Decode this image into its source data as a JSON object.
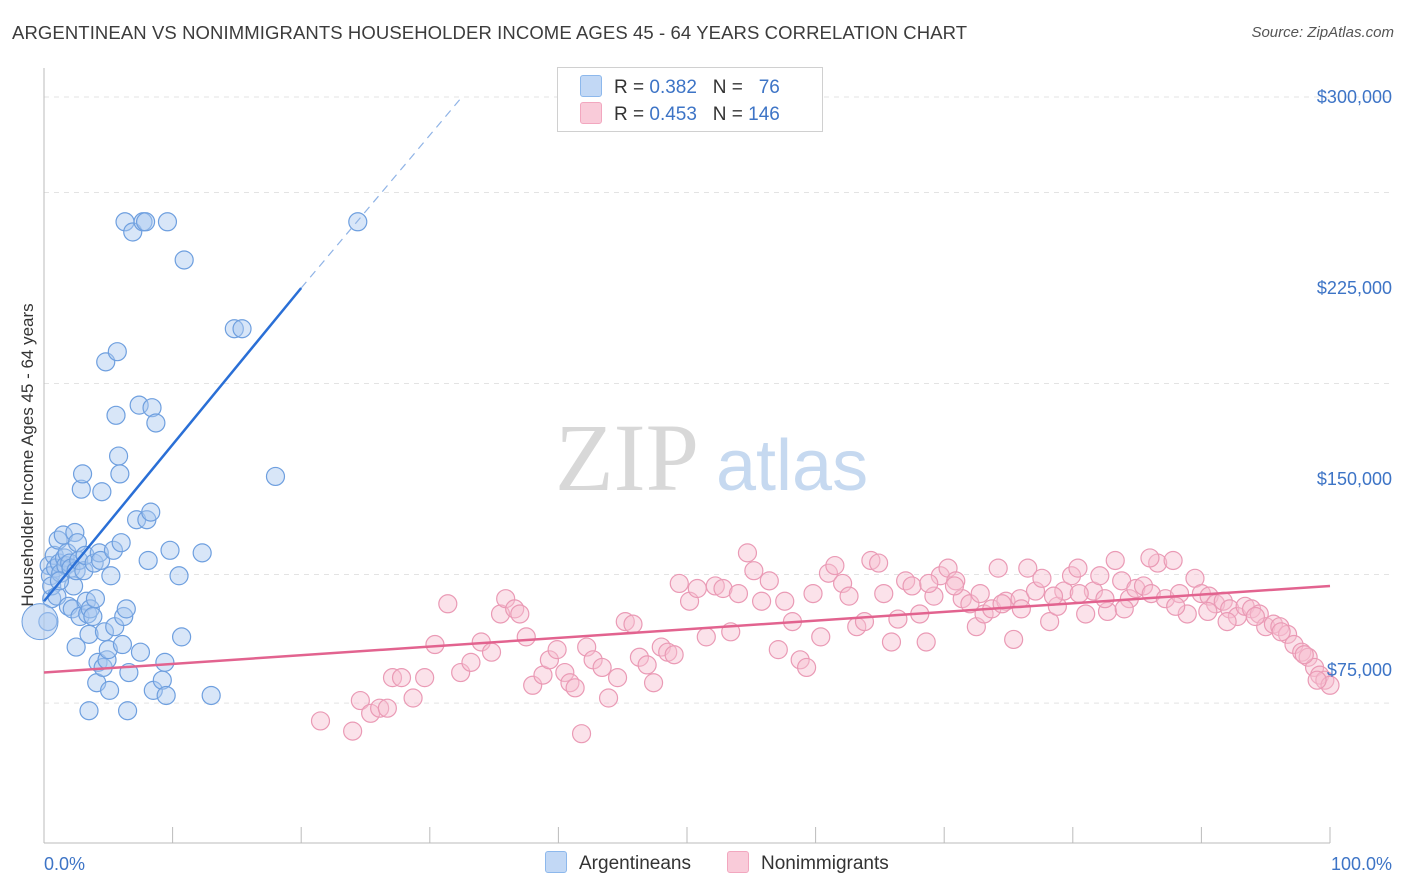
{
  "title": "ARGENTINEAN VS NONIMMIGRANTS HOUSEHOLDER INCOME AGES 45 - 64 YEARS CORRELATION CHART",
  "source": "Source: ZipAtlas.com",
  "watermark": {
    "zip": "ZIP",
    "atlas": "atlas"
  },
  "colors": {
    "blue": "#8db8ec",
    "blue_line": "#2a6fd6",
    "pink": "#f2a7bf",
    "pink_line": "#e2638f",
    "accent_text": "#3d74c6"
  },
  "legend": {
    "r_label": "R =",
    "n_label": "N =",
    "rows": [
      {
        "r": "0.382",
        "n": "76"
      },
      {
        "r": "0.453",
        "n": "146"
      }
    ]
  },
  "chart_data": {
    "type": "scatter",
    "title": "ARGENTINEAN VS NONIMMIGRANTS HOUSEHOLDER INCOME AGES 45 - 64 YEARS CORRELATION CHART",
    "xlabel": "",
    "ylabel": "Householder Income Ages 45 - 64 years",
    "xlim": [
      0,
      100
    ],
    "ylim": [
      0,
      310000
    ],
    "x_tick_labels": [
      "0.0%",
      "100.0%"
    ],
    "y_ticks": [
      75000,
      150000,
      225000,
      300000
    ],
    "y_tick_labels": [
      "$75,000",
      "$150,000",
      "$225,000",
      "$300,000"
    ],
    "grid": "horizontal dashed",
    "legend_placement": "top-center and bottom-center",
    "series": [
      {
        "name": "Argentineans",
        "color": "#8db8ec",
        "trend": {
          "x": [
            0,
            20
          ],
          "y": [
            102000,
            225000
          ],
          "dashed_to": {
            "x": 32.5,
            "y": 300000
          }
        },
        "points": [
          [
            0.3,
            94000
          ],
          [
            0.4,
            116000
          ],
          [
            0.5,
            112000
          ],
          [
            0.6,
            103000
          ],
          [
            0.6,
            108000
          ],
          [
            0.8,
            120000
          ],
          [
            0.9,
            115000
          ],
          [
            1.0,
            104000
          ],
          [
            1.1,
            126000
          ],
          [
            1.2,
            117000
          ],
          [
            1.3,
            113000
          ],
          [
            1.5,
            128000
          ],
          [
            1.6,
            119000
          ],
          [
            1.7,
            116000
          ],
          [
            1.8,
            121000
          ],
          [
            1.9,
            100000
          ],
          [
            2.0,
            117000
          ],
          [
            2.1,
            115000
          ],
          [
            2.2,
            99000
          ],
          [
            2.3,
            108000
          ],
          [
            2.4,
            129000
          ],
          [
            2.5,
            114000
          ],
          [
            2.6,
            125000
          ],
          [
            2.7,
            118000
          ],
          [
            2.8,
            96000
          ],
          [
            2.9,
            146000
          ],
          [
            3.0,
            152000
          ],
          [
            3.1,
            114000
          ],
          [
            3.2,
            120000
          ],
          [
            3.3,
            102000
          ],
          [
            3.4,
            97000
          ],
          [
            3.5,
            89000
          ],
          [
            3.6,
            99000
          ],
          [
            3.8,
            96000
          ],
          [
            3.9,
            117000
          ],
          [
            4.0,
            103000
          ],
          [
            4.1,
            70000
          ],
          [
            4.2,
            78000
          ],
          [
            4.3,
            121000
          ],
          [
            4.4,
            118000
          ],
          [
            4.5,
            145000
          ],
          [
            4.6,
            76000
          ],
          [
            4.7,
            90000
          ],
          [
            4.8,
            196000
          ],
          [
            4.9,
            79000
          ],
          [
            5.0,
            83000
          ],
          [
            5.1,
            67000
          ],
          [
            5.2,
            112000
          ],
          [
            5.4,
            122000
          ],
          [
            5.5,
            92000
          ],
          [
            5.6,
            175000
          ],
          [
            5.7,
            200000
          ],
          [
            5.8,
            159000
          ],
          [
            5.9,
            152000
          ],
          [
            6.0,
            125000
          ],
          [
            6.1,
            85000
          ],
          [
            6.2,
            96000
          ],
          [
            6.3,
            251000
          ],
          [
            6.4,
            99000
          ],
          [
            6.6,
            74000
          ],
          [
            6.9,
            247000
          ],
          [
            7.2,
            134000
          ],
          [
            7.4,
            179000
          ],
          [
            7.5,
            82000
          ],
          [
            7.7,
            251000
          ],
          [
            7.9,
            251000
          ],
          [
            8.0,
            134000
          ],
          [
            8.1,
            118000
          ],
          [
            8.3,
            137000
          ],
          [
            8.4,
            178000
          ],
          [
            8.5,
            67000
          ],
          [
            8.7,
            172000
          ],
          [
            9.2,
            71000
          ],
          [
            9.4,
            78000
          ],
          [
            9.6,
            251000
          ],
          [
            9.8,
            122000
          ],
          [
            10.5,
            112000
          ],
          [
            10.7,
            88000
          ],
          [
            10.9,
            236000
          ],
          [
            12.3,
            121000
          ],
          [
            13.0,
            65000
          ],
          [
            14.8,
            209000
          ],
          [
            15.4,
            209000
          ],
          [
            18.0,
            151000
          ],
          [
            24.4,
            251000
          ],
          [
            3.5,
            59000
          ],
          [
            6.5,
            59000
          ],
          [
            9.5,
            65000
          ],
          [
            2.5,
            84000
          ],
          [
            1.2,
            110000
          ]
        ]
      },
      {
        "name": "Nonimmigrants",
        "color": "#f2a7bf",
        "trend": {
          "x": [
            0,
            100
          ],
          "y": [
            74000,
            108000
          ]
        },
        "points": [
          [
            21.5,
            55000
          ],
          [
            24.0,
            51000
          ],
          [
            24.6,
            63000
          ],
          [
            25.4,
            58000
          ],
          [
            26.1,
            60000
          ],
          [
            26.7,
            60000
          ],
          [
            27.1,
            72000
          ],
          [
            27.8,
            72000
          ],
          [
            28.7,
            64000
          ],
          [
            29.6,
            72000
          ],
          [
            30.4,
            85000
          ],
          [
            31.4,
            101000
          ],
          [
            32.4,
            74000
          ],
          [
            33.2,
            78000
          ],
          [
            34.0,
            86000
          ],
          [
            34.8,
            82000
          ],
          [
            35.5,
            97000
          ],
          [
            35.9,
            103000
          ],
          [
            36.6,
            99000
          ],
          [
            37.0,
            97000
          ],
          [
            37.5,
            88000
          ],
          [
            38.0,
            69000
          ],
          [
            38.8,
            73000
          ],
          [
            39.3,
            79000
          ],
          [
            39.9,
            83000
          ],
          [
            40.5,
            74000
          ],
          [
            40.9,
            70000
          ],
          [
            41.3,
            68000
          ],
          [
            41.8,
            50000
          ],
          [
            42.2,
            84000
          ],
          [
            42.7,
            79000
          ],
          [
            43.4,
            76000
          ],
          [
            43.9,
            64000
          ],
          [
            44.6,
            72000
          ],
          [
            45.2,
            94000
          ],
          [
            45.8,
            93000
          ],
          [
            46.3,
            80000
          ],
          [
            46.9,
            77000
          ],
          [
            47.4,
            70000
          ],
          [
            48.0,
            84000
          ],
          [
            48.5,
            82000
          ],
          [
            49.0,
            81000
          ],
          [
            49.4,
            109000
          ],
          [
            50.2,
            102000
          ],
          [
            50.8,
            107000
          ],
          [
            51.5,
            88000
          ],
          [
            52.2,
            108000
          ],
          [
            52.8,
            107000
          ],
          [
            53.4,
            90000
          ],
          [
            54.0,
            105000
          ],
          [
            54.7,
            121000
          ],
          [
            55.2,
            114000
          ],
          [
            55.8,
            102000
          ],
          [
            56.4,
            110000
          ],
          [
            57.1,
            83000
          ],
          [
            57.6,
            102000
          ],
          [
            58.2,
            94000
          ],
          [
            58.8,
            79000
          ],
          [
            59.3,
            76000
          ],
          [
            59.8,
            105000
          ],
          [
            60.4,
            88000
          ],
          [
            61.0,
            113000
          ],
          [
            61.5,
            116000
          ],
          [
            62.1,
            109000
          ],
          [
            62.6,
            104000
          ],
          [
            63.2,
            92000
          ],
          [
            63.8,
            94000
          ],
          [
            64.3,
            118000
          ],
          [
            64.9,
            117000
          ],
          [
            65.3,
            105000
          ],
          [
            65.9,
            86000
          ],
          [
            66.4,
            95000
          ],
          [
            67.0,
            110000
          ],
          [
            67.5,
            108000
          ],
          [
            68.1,
            97000
          ],
          [
            68.6,
            86000
          ],
          [
            69.2,
            104000
          ],
          [
            69.7,
            112000
          ],
          [
            70.3,
            115000
          ],
          [
            70.9,
            110000
          ],
          [
            71.4,
            103000
          ],
          [
            72.0,
            101000
          ],
          [
            72.5,
            92000
          ],
          [
            73.1,
            97000
          ],
          [
            73.7,
            99000
          ],
          [
            74.2,
            115000
          ],
          [
            74.8,
            102000
          ],
          [
            75.4,
            87000
          ],
          [
            75.9,
            103000
          ],
          [
            76.5,
            115000
          ],
          [
            77.1,
            106000
          ],
          [
            77.6,
            111000
          ],
          [
            78.2,
            94000
          ],
          [
            78.8,
            100000
          ],
          [
            79.3,
            106000
          ],
          [
            79.9,
            112000
          ],
          [
            80.4,
            115000
          ],
          [
            81.0,
            97000
          ],
          [
            81.6,
            106000
          ],
          [
            82.1,
            112000
          ],
          [
            82.7,
            98000
          ],
          [
            83.3,
            118000
          ],
          [
            83.8,
            110000
          ],
          [
            84.4,
            103000
          ],
          [
            84.9,
            107000
          ],
          [
            85.5,
            108000
          ],
          [
            86.1,
            105000
          ],
          [
            86.6,
            117000
          ],
          [
            87.2,
            103000
          ],
          [
            87.8,
            118000
          ],
          [
            88.3,
            105000
          ],
          [
            88.9,
            97000
          ],
          [
            89.5,
            111000
          ],
          [
            90.0,
            105000
          ],
          [
            90.6,
            104000
          ],
          [
            91.1,
            101000
          ],
          [
            91.7,
            102000
          ],
          [
            92.2,
            99000
          ],
          [
            92.8,
            96000
          ],
          [
            93.4,
            100000
          ],
          [
            93.9,
            99000
          ],
          [
            94.5,
            97000
          ],
          [
            95.0,
            92000
          ],
          [
            95.6,
            93000
          ],
          [
            96.1,
            92000
          ],
          [
            96.7,
            89000
          ],
          [
            97.2,
            85000
          ],
          [
            97.8,
            82000
          ],
          [
            98.3,
            80000
          ],
          [
            98.8,
            76000
          ],
          [
            99.2,
            73000
          ],
          [
            99.6,
            71000
          ],
          [
            100.0,
            69000
          ],
          [
            99.0,
            71000
          ],
          [
            98.0,
            81000
          ],
          [
            96.2,
            90000
          ],
          [
            94.2,
            96000
          ],
          [
            92.0,
            94000
          ],
          [
            90.5,
            98000
          ],
          [
            88.0,
            100000
          ],
          [
            86.0,
            119000
          ],
          [
            84.0,
            99000
          ],
          [
            82.5,
            103000
          ],
          [
            80.5,
            105000
          ],
          [
            78.5,
            104000
          ],
          [
            76.0,
            99000
          ],
          [
            74.5,
            101000
          ],
          [
            72.8,
            105000
          ],
          [
            70.8,
            108000
          ],
          [
            68.8,
            109000
          ]
        ]
      }
    ]
  }
}
